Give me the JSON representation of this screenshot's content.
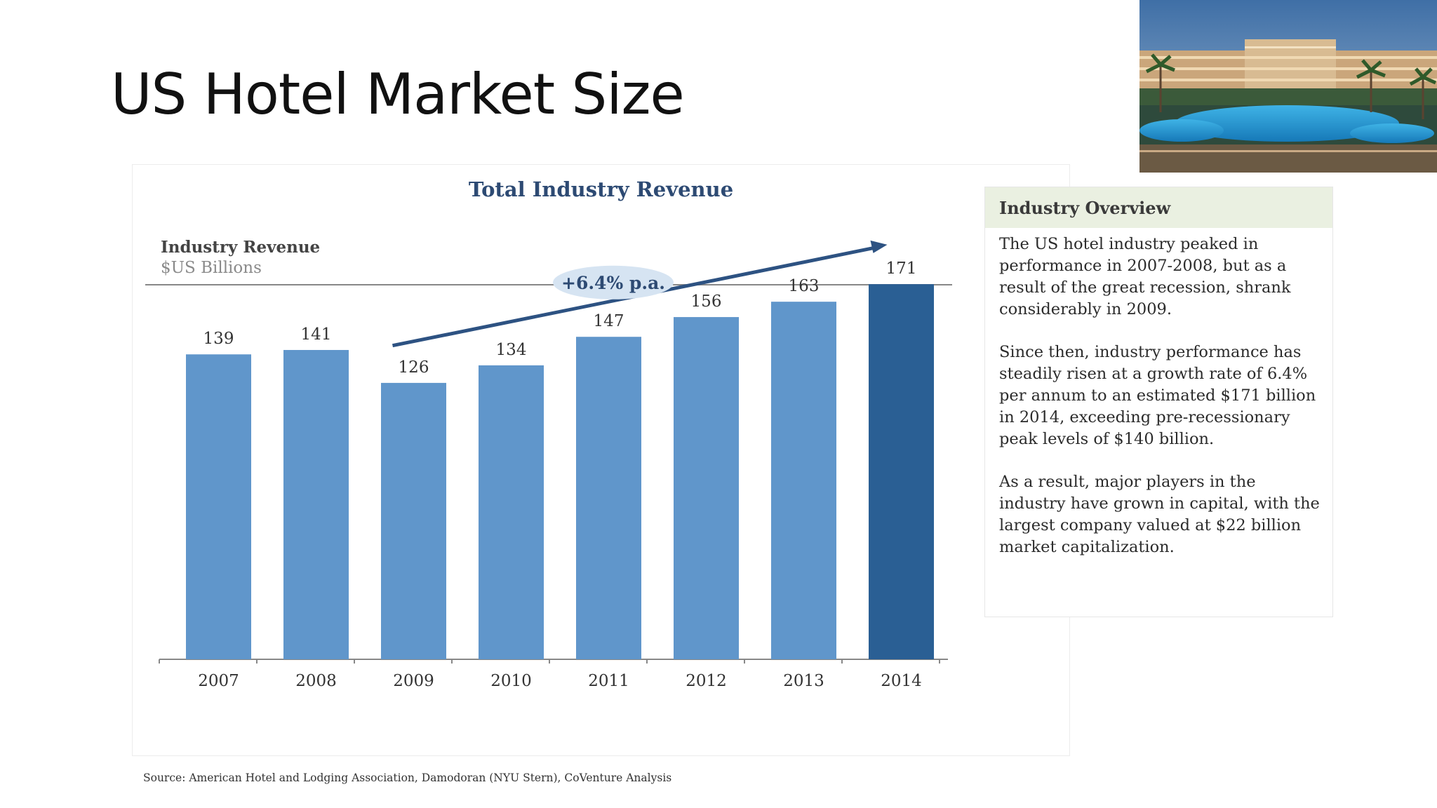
{
  "slide": {
    "title": "US Hotel Market Size"
  },
  "photo": {
    "description_icon": "hotel-resort-photo"
  },
  "chart_data": {
    "type": "bar",
    "title": "Total Industry Revenue",
    "ylabel": "Industry Revenue",
    "yunit": "$US Billions",
    "categories": [
      "2007",
      "2008",
      "2009",
      "2010",
      "2011",
      "2012",
      "2013",
      "2014"
    ],
    "values": [
      139,
      141,
      126,
      134,
      147,
      156,
      163,
      171
    ],
    "ylim": [
      0,
      180
    ],
    "grid": false,
    "colors": {
      "bar": "#6096cb",
      "bar_highlight": "#2a5f94",
      "trend_arrow": "#2d5282",
      "annotation_bg": "#d6e4f2",
      "annotation_text": "#2d4a73"
    },
    "highlight_category": "2014",
    "annotation": "+6.4% p.a."
  },
  "overview": {
    "title": "Industry Overview",
    "paragraphs": [
      "The US hotel industry peaked in performance in 2007-2008, but as a result of the great recession, shrank considerably in 2009.",
      "Since then, industry performance has steadily risen at a growth rate of 6.4% per annum to an estimated $171 billion in 2014, exceeding pre-recessionary peak levels of $140 billion.",
      "As a result, major players in the industry have grown in capital, with the largest company valued at $22 billion market capitalization."
    ]
  },
  "source": "Source: American Hotel and Lodging Association, Damodoran (NYU Stern), CoVenture Analysis"
}
